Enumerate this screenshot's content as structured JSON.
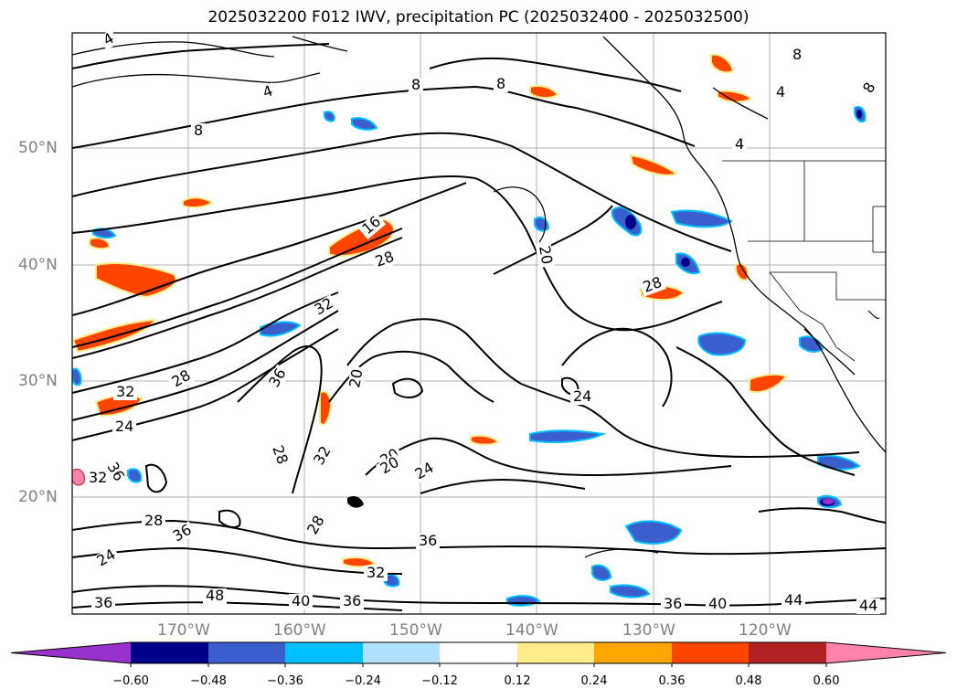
{
  "title": "2025032200 F012 IWV, precipitation PC (2025032400 - 2025032500)",
  "latitude_labels": [
    "50°N",
    "40°N",
    "30°N",
    "20°N"
  ],
  "longitude_labels": [
    "170°W",
    "160°W",
    "150°W",
    "140°W",
    "130°W",
    "120°W"
  ],
  "colorbar": {
    "tick_labels": [
      "−0.60",
      "−0.48",
      "−0.36",
      "−0.24",
      "−0.12",
      "0.12",
      "0.24",
      "0.36",
      "0.48",
      "0.60"
    ],
    "colors": [
      "#9932cc",
      "#00008b",
      "#3a5fcd",
      "#00bfff",
      "#b0e2ff",
      "#ffffff",
      "#ffec8b",
      "#ffa500",
      "#ff4500",
      "#b22222",
      "#ff82ab"
    ]
  },
  "contour_labels": [
    "4",
    "8",
    "8",
    "4",
    "8",
    "8",
    "4",
    "8",
    "4",
    "16",
    "28",
    "20",
    "20",
    "28",
    "32",
    "20",
    "36",
    "28",
    "32",
    "24",
    "36",
    "32",
    "28",
    "20",
    "24",
    "24",
    "28",
    "36",
    "32",
    "36",
    "40",
    "48",
    "36",
    "36",
    "24",
    "28",
    "32",
    "36",
    "40",
    "44",
    "44"
  ],
  "colors": {
    "gridline": "#b0b0b0",
    "axis_label": "#808080",
    "contour": "#000000"
  }
}
